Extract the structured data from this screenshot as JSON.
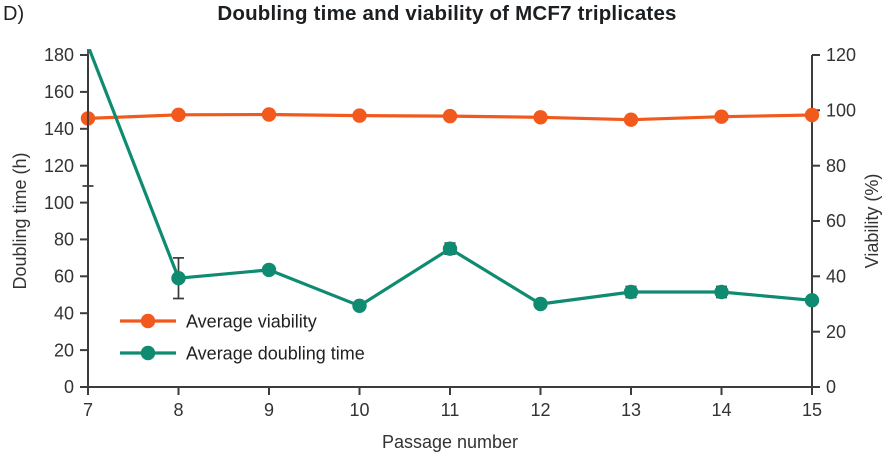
{
  "figure_label": "D)",
  "title": "Doubling time and viability of MCF7 triplicates",
  "colors": {
    "viability_series": "#F2591C",
    "doubling_series": "#0E8B70",
    "axis": "#3C3C3C",
    "error_bar": "#3A3A3A",
    "title_text": "#1C1F22",
    "tick_text": "#333333",
    "background": "#FFFFFF"
  },
  "chart_data": {
    "type": "line",
    "title": "Doubling time and viability of MCF7 triplicates",
    "xlabel": "Passage number",
    "ylabel_left": "Doubling time (h)",
    "ylabel_right": "Viability (%)",
    "x": [
      7,
      8,
      9,
      10,
      11,
      12,
      13,
      14,
      15
    ],
    "xlim": [
      7,
      15
    ],
    "ylim_left": [
      0,
      180
    ],
    "ylim_right": [
      0,
      120
    ],
    "ytick_step_left": 20,
    "ytick_step_right": 20,
    "grid": false,
    "legend_position": "inside-lower-left",
    "series": [
      {
        "name": "Average viability",
        "axis": "right",
        "color": "#F2591C",
        "marker": "circle",
        "values": [
          97.1,
          98.4,
          98.5,
          98.1,
          97.9,
          97.5,
          96.6,
          97.7,
          98.3
        ],
        "errors": [
          0,
          0,
          0,
          0,
          0,
          0,
          0,
          0,
          0
        ]
      },
      {
        "name": "Average doubling time",
        "axis": "left",
        "color": "#0E8B70",
        "marker": "circle",
        "values": [
          185,
          59,
          63.5,
          44,
          75,
          45,
          51.5,
          51.5,
          47
        ],
        "errors": [
          76,
          11,
          0,
          0,
          3,
          1,
          3,
          3,
          1.5
        ],
        "note": "Passage 7 value exceeds the 180 h axis maximum; its marker, line segment and upper error bar are clipped at the top of the plot (lower error cap visible at ~109 h)."
      }
    ]
  }
}
